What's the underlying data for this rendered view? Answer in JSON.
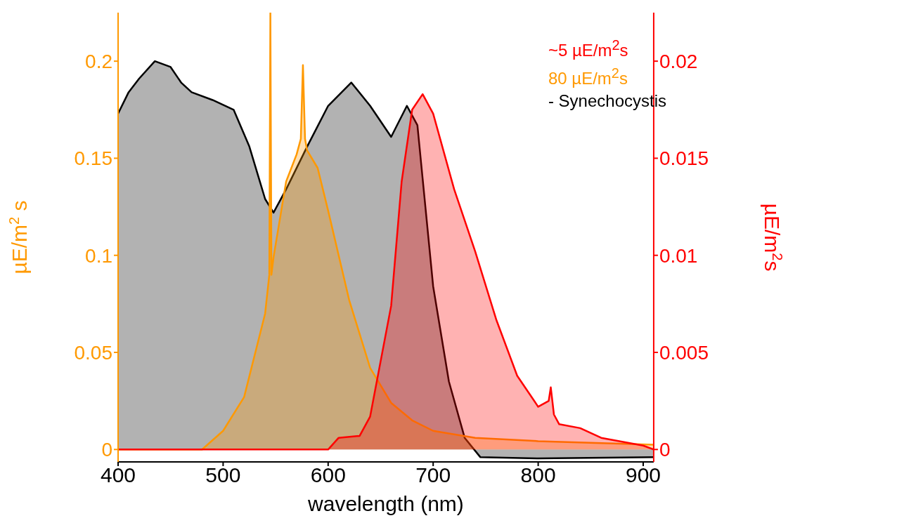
{
  "chart_data": {
    "type": "area",
    "xlabel": "wavelength (nm)",
    "ylabel": "µE/m$^{2}$ s",
    "y2label": "µE/m$^{2}$s",
    "xlim": [
      400,
      910
    ],
    "xticks": [
      400,
      500,
      600,
      700,
      800,
      900
    ],
    "ylim": [
      -0.0064,
      0.225
    ],
    "yticks": [
      0,
      0.05,
      0.1,
      0.15,
      0.2
    ],
    "y2lim": [
      -0.00064,
      0.0225
    ],
    "y2ticks": [
      0,
      0.005,
      0.01,
      0.015,
      0.02
    ],
    "legend": "top right",
    "marker": "none",
    "line_style": "solid",
    "series": [
      {
        "name": "- Synechocystis",
        "color": "#000000",
        "x": [
          400,
          410,
          420,
          435,
          450,
          460,
          470,
          490,
          510,
          525,
          540,
          548,
          560,
          580,
          600,
          622,
          640,
          660,
          675,
          685,
          700,
          715,
          730,
          745,
          800,
          910
        ],
        "values": [
          0.173,
          0.184,
          0.191,
          0.2,
          0.197,
          0.189,
          0.184,
          0.18,
          0.175,
          0.156,
          0.129,
          0.122,
          0.134,
          0.156,
          0.177,
          0.189,
          0.177,
          0.161,
          0.177,
          0.167,
          0.084,
          0.035,
          0.006,
          -0.004,
          -0.0046,
          -0.004
        ]
      },
      {
        "name": "80 µE/m$^{2}$s",
        "color": "#ff9900",
        "x": [
          400,
          480,
          500,
          520,
          540,
          544,
          545,
          546,
          548,
          560,
          570,
          574,
          576,
          578,
          580,
          590,
          600,
          620,
          640,
          660,
          680,
          700,
          740,
          800,
          910
        ],
        "values": [
          0,
          0,
          0.0096,
          0.027,
          0.07,
          0.09,
          0.225,
          0.09,
          0.099,
          0.138,
          0.152,
          0.16,
          0.198,
          0.16,
          0.154,
          0.145,
          0.123,
          0.077,
          0.042,
          0.024,
          0.015,
          0.0096,
          0.006,
          0.0043,
          0.0025
        ]
      },
      {
        "name": "~5 µE/m$^{2}$s",
        "color": "#ff0000",
        "axis": "y2",
        "x": [
          400,
          600,
          610,
          630,
          640,
          660,
          670,
          680,
          690,
          700,
          720,
          740,
          760,
          780,
          800,
          810,
          812,
          815,
          820,
          840,
          860,
          900,
          910
        ],
        "values": [
          0,
          0,
          0.0006,
          0.0007,
          0.0017,
          0.0074,
          0.0138,
          0.0175,
          0.0183,
          0.0173,
          0.0134,
          0.0102,
          0.0067,
          0.0038,
          0.0022,
          0.0025,
          0.0032,
          0.0018,
          0.0013,
          0.0011,
          0.0006,
          0.0002,
          0
        ]
      }
    ]
  }
}
